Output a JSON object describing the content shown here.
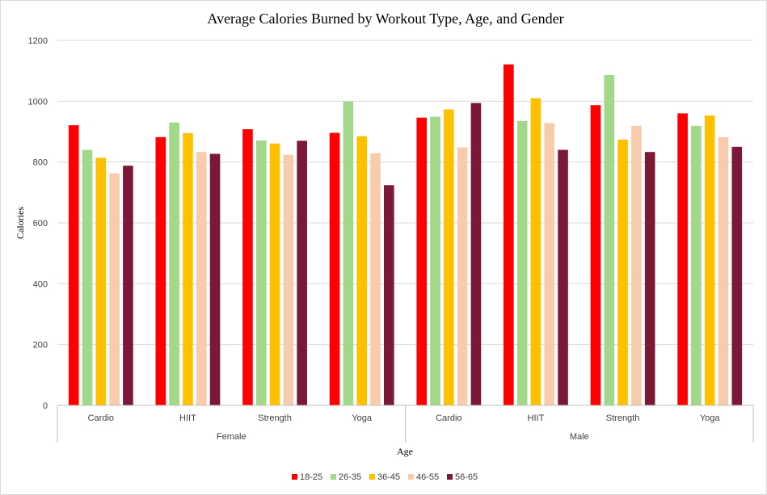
{
  "chart_data": {
    "type": "bar",
    "title": "Average Calories Burned by Workout Type, Age, and Gender",
    "xlabel": "Age",
    "ylabel": "Calories",
    "ylim": [
      0,
      1200
    ],
    "yticks": [
      0,
      200,
      400,
      600,
      800,
      1000,
      1200
    ],
    "grid": true,
    "legend_position": "bottom",
    "groups": [
      "Female",
      "Male"
    ],
    "categories": [
      "Cardio",
      "HIIT",
      "Strength",
      "Yoga",
      "Cardio",
      "HIIT",
      "Strength",
      "Yoga"
    ],
    "category_group": [
      "Female",
      "Female",
      "Female",
      "Female",
      "Male",
      "Male",
      "Male",
      "Male"
    ],
    "series": [
      {
        "name": "18-25",
        "color": "#ff0000",
        "values": [
          921,
          882,
          908,
          896,
          946,
          1121,
          987,
          960
        ]
      },
      {
        "name": "26-35",
        "color": "#a1d88a",
        "values": [
          840,
          930,
          871,
          999,
          949,
          935,
          1086,
          919
        ]
      },
      {
        "name": "36-45",
        "color": "#ffc000",
        "values": [
          814,
          895,
          861,
          885,
          973,
          1010,
          874,
          953
        ]
      },
      {
        "name": "46-55",
        "color": "#f8cbad",
        "values": [
          763,
          833,
          824,
          829,
          848,
          928,
          919,
          882
        ]
      },
      {
        "name": "56-65",
        "color": "#7b1737",
        "values": [
          788,
          827,
          870,
          724,
          994,
          840,
          833,
          850
        ]
      }
    ]
  }
}
